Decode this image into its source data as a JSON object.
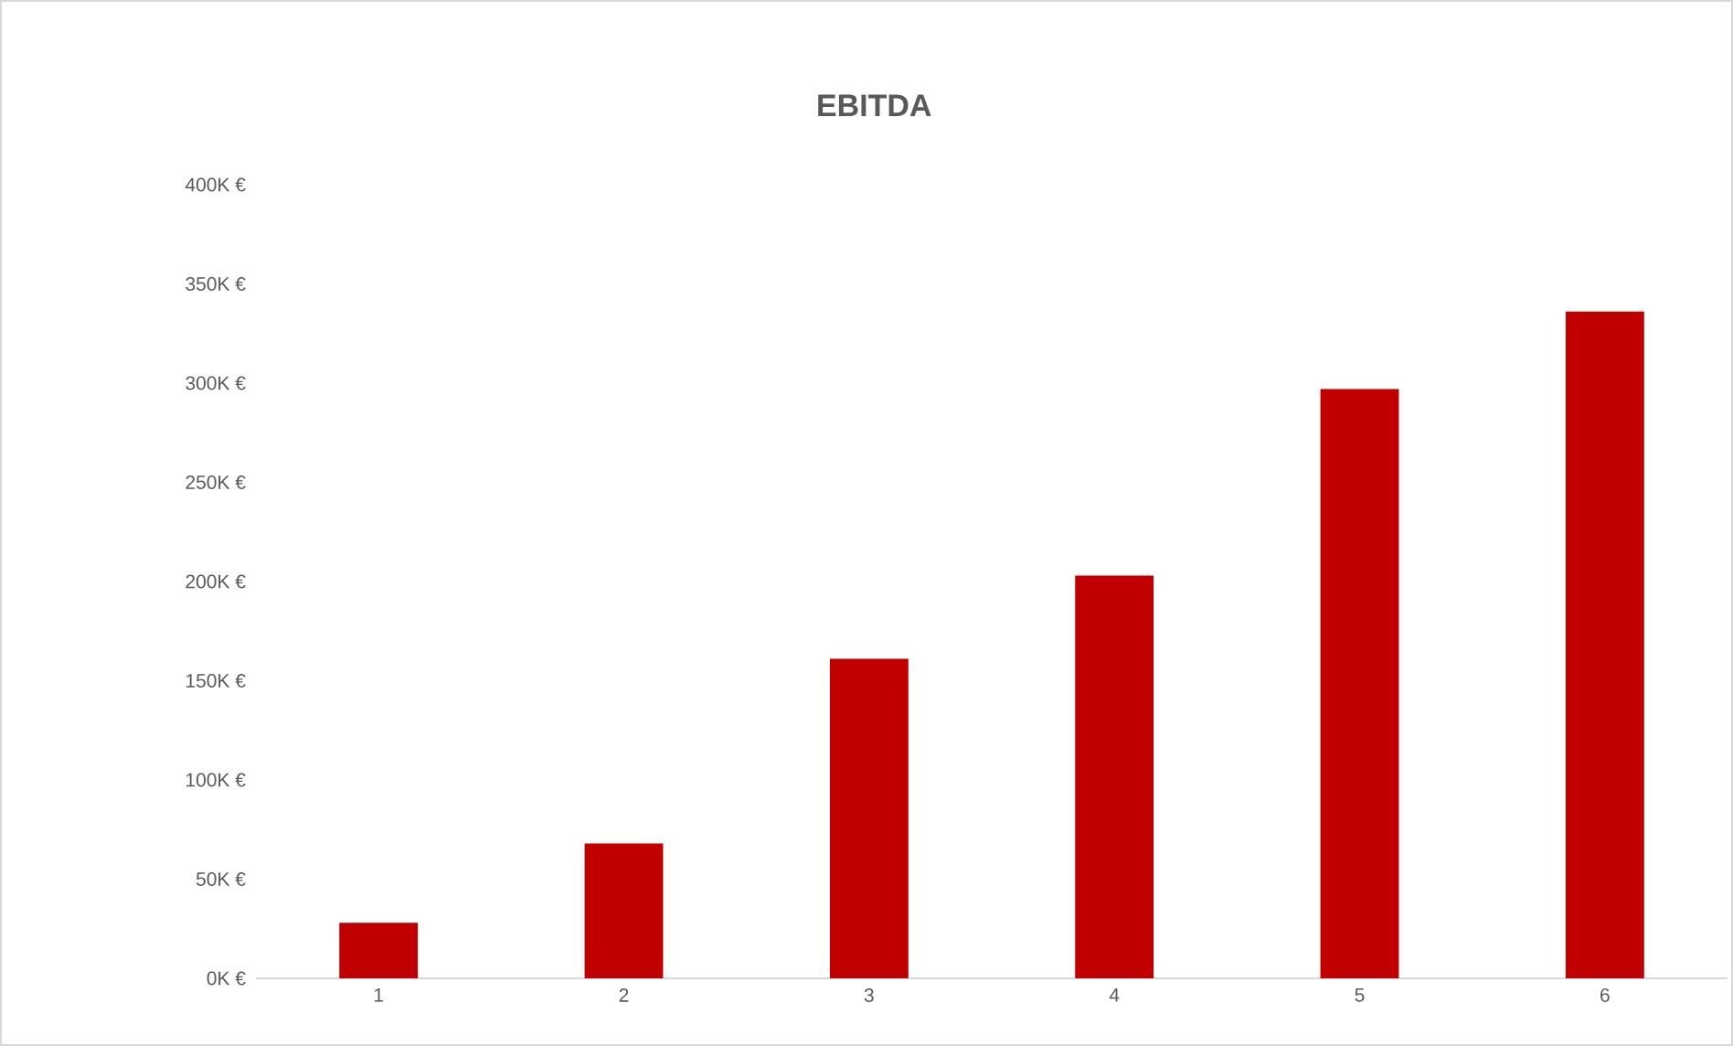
{
  "chart_data": {
    "type": "bar",
    "title": "EBITDA",
    "categories": [
      "1",
      "2",
      "3",
      "4",
      "5",
      "6"
    ],
    "values": [
      28000,
      68000,
      161000,
      203000,
      297000,
      336000
    ],
    "color": "#c00000",
    "ylim": [
      0,
      400000
    ],
    "yticks": [
      {
        "value": 0,
        "label": "0K €"
      },
      {
        "value": 50000,
        "label": "50K €"
      },
      {
        "value": 100000,
        "label": "100K €"
      },
      {
        "value": 150000,
        "label": "150K €"
      },
      {
        "value": 200000,
        "label": "200K €"
      },
      {
        "value": 250000,
        "label": "250K €"
      },
      {
        "value": 300000,
        "label": "300K €"
      },
      {
        "value": 350000,
        "label": "350K €"
      },
      {
        "value": 400000,
        "label": "400K €"
      }
    ]
  }
}
